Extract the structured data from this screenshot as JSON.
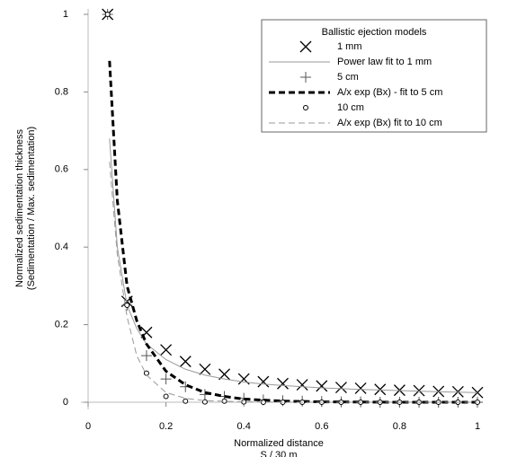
{
  "chart_data": {
    "type": "line",
    "xlabel": [
      "Normalized distance",
      "S / 30 m"
    ],
    "ylabel": [
      "Normalized sedimentation thickness",
      "(Sedimentation / Max. sedimentation)"
    ],
    "legend_title": "Ballistic ejection models",
    "legend": "upper right",
    "xlim": [
      0,
      1
    ],
    "ylim": [
      0,
      1
    ],
    "xticks": [
      0,
      0.2,
      0.4,
      0.6,
      0.8,
      1
    ],
    "yticks": [
      0,
      0.2,
      0.4,
      0.6,
      0.8,
      1
    ],
    "series": [
      {
        "name": "1 mm",
        "color": "#000000",
        "marker": "x",
        "x": [
          0.05,
          0.1,
          0.15,
          0.2,
          0.25,
          0.3,
          0.35,
          0.4,
          0.45,
          0.5,
          0.55,
          0.6,
          0.65,
          0.7,
          0.75,
          0.8,
          0.85,
          0.9,
          0.95,
          1
        ],
        "values": [
          1.0,
          0.26,
          0.18,
          0.135,
          0.105,
          0.085,
          0.072,
          0.06,
          0.053,
          0.048,
          0.045,
          0.042,
          0.038,
          0.036,
          0.033,
          0.031,
          0.03,
          0.028,
          0.027,
          0.025
        ]
      },
      {
        "name": "Power law fit to 1 mm",
        "color": "#999999",
        "line": "solid",
        "width": 1,
        "x": [
          0.055,
          0.075,
          0.1,
          0.125,
          0.15,
          0.2,
          0.25,
          0.3,
          0.35,
          0.4,
          0.45,
          0.5,
          0.6,
          0.7,
          0.8,
          0.9,
          1
        ],
        "values": [
          0.68,
          0.4,
          0.25,
          0.19,
          0.15,
          0.11,
          0.085,
          0.07,
          0.06,
          0.052,
          0.047,
          0.043,
          0.037,
          0.033,
          0.03,
          0.027,
          0.025
        ]
      },
      {
        "name": "5 cm",
        "color": "#555555",
        "marker": "plus",
        "x": [
          0.05,
          0.1,
          0.15,
          0.2,
          0.25,
          0.3,
          0.35,
          0.4,
          0.45,
          0.5,
          0.55,
          0.6,
          0.65,
          0.7,
          0.75,
          0.8,
          0.85,
          0.9,
          0.95,
          1
        ],
        "values": [
          1.0,
          0.25,
          0.12,
          0.06,
          0.04,
          0.02,
          0.015,
          0.01,
          0.006,
          0.004,
          0.003,
          0.002,
          0.001,
          0.001,
          0,
          0,
          0,
          0,
          0,
          0
        ]
      },
      {
        "name": "A/x exp (Bx) - fit to 5 cm",
        "color": "#000000",
        "line": "dash",
        "width": 3,
        "x": [
          0.055,
          0.075,
          0.1,
          0.125,
          0.15,
          0.2,
          0.25,
          0.3,
          0.35,
          0.4,
          0.5,
          0.6,
          0.8,
          1
        ],
        "values": [
          0.88,
          0.52,
          0.3,
          0.21,
          0.15,
          0.08,
          0.045,
          0.025,
          0.015,
          0.008,
          0.003,
          0.001,
          0,
          0
        ]
      },
      {
        "name": "10 cm",
        "color": "#000000",
        "marker": "circle",
        "x": [
          0.05,
          0.1,
          0.15,
          0.2,
          0.25,
          0.3,
          0.35,
          0.4,
          0.45,
          0.5,
          0.55,
          0.6,
          0.65,
          0.7,
          0.75,
          0.8,
          0.85,
          0.9,
          0.95,
          1
        ],
        "values": [
          1.0,
          0.25,
          0.075,
          0.015,
          0.003,
          0.001,
          0.003,
          0.001,
          0,
          0,
          0,
          0,
          0,
          0,
          0,
          0,
          0,
          0,
          0,
          0
        ]
      },
      {
        "name": "A/x exp (Bx) fit to 10 cm",
        "color": "#999999",
        "line": "dash",
        "width": 1,
        "x": [
          0.055,
          0.075,
          0.1,
          0.125,
          0.15,
          0.2,
          0.25,
          0.3,
          0.4,
          0.5,
          1
        ],
        "values": [
          0.62,
          0.38,
          0.22,
          0.12,
          0.07,
          0.025,
          0.01,
          0.004,
          0.001,
          0,
          0
        ]
      }
    ]
  }
}
